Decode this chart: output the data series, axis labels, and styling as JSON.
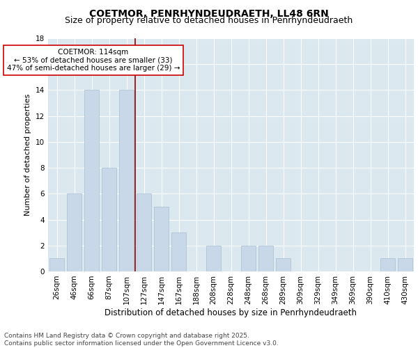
{
  "title": "COETMOR, PENRHYNDEUDRAETH, LL48 6RN",
  "subtitle": "Size of property relative to detached houses in Penrhyndeudraeth",
  "xlabel": "Distribution of detached houses by size in Penrhyndeudraeth",
  "ylabel": "Number of detached properties",
  "categories": [
    "26sqm",
    "46sqm",
    "66sqm",
    "87sqm",
    "107sqm",
    "127sqm",
    "147sqm",
    "167sqm",
    "188sqm",
    "208sqm",
    "228sqm",
    "248sqm",
    "268sqm",
    "289sqm",
    "309sqm",
    "329sqm",
    "349sqm",
    "369sqm",
    "390sqm",
    "410sqm",
    "430sqm"
  ],
  "values": [
    1,
    6,
    14,
    8,
    14,
    6,
    5,
    3,
    0,
    2,
    0,
    2,
    2,
    1,
    0,
    0,
    0,
    0,
    0,
    1,
    1
  ],
  "bar_color": "#c8d8e8",
  "bar_edge_color": "#a8bece",
  "vline_x_index": 4.5,
  "vline_color": "#8b0000",
  "annotation_text": "COETMOR: 114sqm\n← 53% of detached houses are smaller (33)\n47% of semi-detached houses are larger (29) →",
  "annotation_box_color": "#ffffff",
  "annotation_box_edge": "#cc0000",
  "ylim": [
    0,
    18
  ],
  "yticks": [
    0,
    2,
    4,
    6,
    8,
    10,
    12,
    14,
    16,
    18
  ],
  "background_color": "#dce8f0",
  "footer_text": "Contains HM Land Registry data © Crown copyright and database right 2025.\nContains public sector information licensed under the Open Government Licence v3.0.",
  "title_fontsize": 10,
  "subtitle_fontsize": 9,
  "xlabel_fontsize": 8.5,
  "ylabel_fontsize": 8,
  "tick_fontsize": 7.5,
  "annotation_fontsize": 7.5,
  "footer_fontsize": 6.5
}
